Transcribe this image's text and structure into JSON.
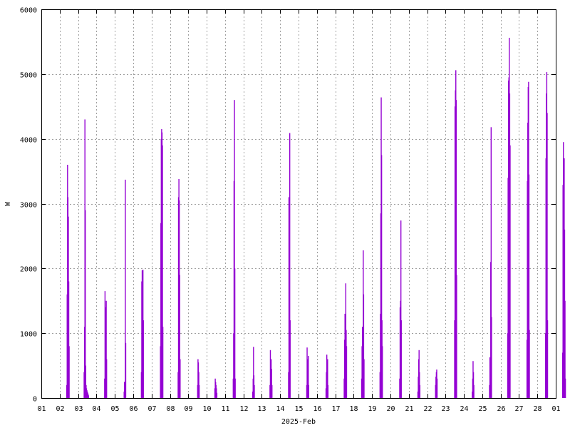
{
  "chart_data": {
    "type": "bar",
    "title": "",
    "xlabel": "2025-Feb",
    "ylabel": "W",
    "xlim": [
      0,
      28
    ],
    "ylim": [
      0,
      6000
    ],
    "yticks": [
      0,
      1000,
      2000,
      3000,
      4000,
      5000,
      6000
    ],
    "xticks": [
      "01",
      "02",
      "03",
      "04",
      "05",
      "06",
      "07",
      "08",
      "09",
      "10",
      "11",
      "12",
      "13",
      "14",
      "15",
      "16",
      "17",
      "18",
      "19",
      "20",
      "21",
      "22",
      "23",
      "24",
      "25",
      "26",
      "27",
      "28",
      "01"
    ],
    "grid": true,
    "legend": "none",
    "series_color": "#9400D3",
    "grid_color": "#a0a0a0",
    "series": [
      {
        "x_unit": "day-of-month (fractional)",
        "peaks": [
          {
            "day": 1.45,
            "values": [
              200,
              1600,
              3600,
              3100,
              2800,
              1800,
              800
            ]
          },
          {
            "day": 2.45,
            "values": [
              400,
              1100,
              4300,
              2900,
              500,
              200,
              150,
              120,
              100,
              80,
              60,
              40
            ]
          },
          {
            "day": 3.5,
            "values": [
              300,
              1650,
              1400,
              1100,
              1500,
              600
            ]
          },
          {
            "day": 4.55,
            "values": [
              100,
              250,
              180,
              3370,
              850
            ]
          },
          {
            "day": 5.5,
            "values": [
              400,
              1800,
              1970,
              1400,
              1980,
              1200
            ]
          },
          {
            "day": 6.55,
            "values": [
              800,
              2700,
              4000,
              4150,
              4100,
              3900,
              1100
            ]
          },
          {
            "day": 7.5,
            "values": [
              400,
              3100,
              3380,
              3050,
              1900,
              600
            ]
          },
          {
            "day": 8.55,
            "values": [
              200,
              600,
              550,
              400,
              200
            ]
          },
          {
            "day": 9.5,
            "values": [
              150,
              300,
              250,
              200,
              150,
              80
            ]
          },
          {
            "day": 10.5,
            "values": [
              300,
              1000,
              3350,
              4600,
              2000,
              300
            ]
          },
          {
            "day": 11.55,
            "values": [
              100,
              300,
              790,
              350,
              200
            ]
          },
          {
            "day": 12.5,
            "values": [
              200,
              740,
              300,
              600,
              450,
              200
            ]
          },
          {
            "day": 13.5,
            "values": [
              400,
              3100,
              2800,
              4090,
              1200
            ]
          },
          {
            "day": 14.5,
            "values": [
              200,
              780,
              600,
              450,
              650,
              200
            ]
          },
          {
            "day": 15.55,
            "values": [
              150,
              400,
              670,
              550,
              600,
              200
            ]
          },
          {
            "day": 16.55,
            "values": [
              300,
              900,
              1300,
              1200,
              1770,
              1050,
              800
            ]
          },
          {
            "day": 17.5,
            "values": [
              300,
              800,
              1100,
              900,
              2280,
              1600,
              600
            ]
          },
          {
            "day": 18.5,
            "values": [
              400,
              1300,
              2850,
              4640,
              3750,
              1200,
              800
            ]
          },
          {
            "day": 19.55,
            "values": [
              300,
              1400,
              1500,
              2740,
              1200
            ]
          },
          {
            "day": 20.55,
            "values": [
              100,
              330,
              600,
              740,
              400,
              200
            ]
          },
          {
            "day": 21.5,
            "values": [
              200,
              330,
              400,
              440,
              300
            ]
          },
          {
            "day": 22.55,
            "values": [
              1200,
              4500,
              4750,
              5060,
              4600,
              1900
            ]
          },
          {
            "day": 23.5,
            "values": [
              100,
              300,
              570,
              400,
              200
            ]
          },
          {
            "day": 24.45,
            "values": [
              200,
              630,
              300,
              2100,
              4180,
              1250
            ]
          },
          {
            "day": 25.45,
            "values": [
              1000,
              3400,
              4900,
              4950,
              5560,
              4700,
              3900
            ]
          },
          {
            "day": 26.5,
            "values": [
              900,
              3350,
              4250,
              4800,
              4880,
              3450,
              1050
            ]
          },
          {
            "day": 27.5,
            "values": [
              1000,
              3700,
              4700,
              5030,
              4400,
              1200
            ]
          },
          {
            "day": 28.45,
            "values": [
              700,
              3290,
              3950,
              2450,
              3700,
              2600,
              1500,
              300
            ]
          }
        ]
      }
    ]
  }
}
